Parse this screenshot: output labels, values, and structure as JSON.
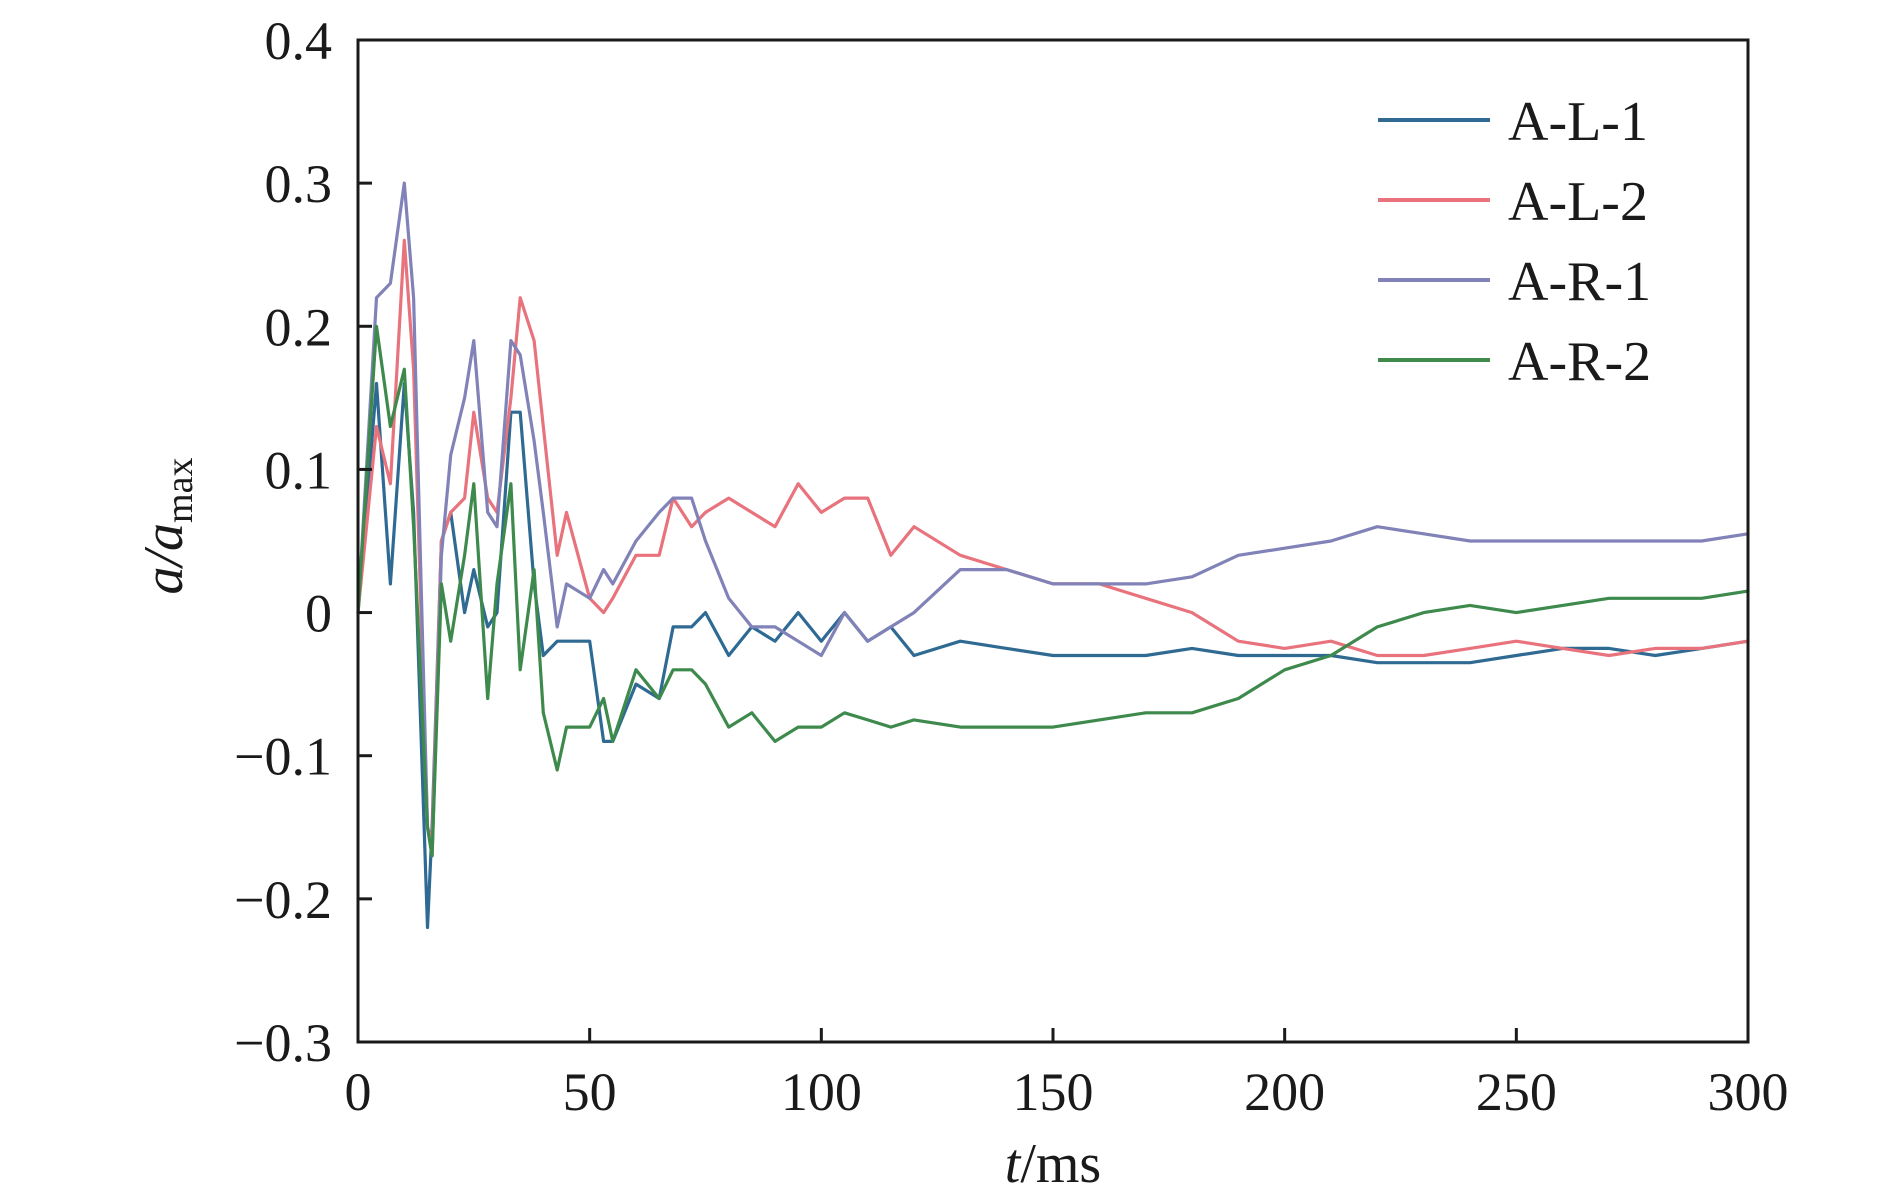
{
  "chart_data": {
    "type": "line",
    "title": "",
    "xlabel_var": "t",
    "xlabel_unit": "/ms",
    "ylabel_var": "a/a",
    "ylabel_sub": "max",
    "xlim": [
      0,
      300
    ],
    "ylim": [
      -0.3,
      0.4
    ],
    "x_ticks": [
      0,
      50,
      100,
      150,
      200,
      250,
      300
    ],
    "x_tick_labels": [
      "0",
      "50",
      "100",
      "150",
      "200",
      "250",
      "300"
    ],
    "y_ticks": [
      -0.3,
      -0.2,
      -0.1,
      0,
      0.1,
      0.2,
      0.3,
      0.4
    ],
    "y_tick_labels": [
      "−0.3",
      "−0.2",
      "−0.1",
      "0",
      "0.1",
      "0.2",
      "0.3",
      "0.4"
    ],
    "grid": false,
    "legend_position": "top-right",
    "x": [
      0,
      4,
      7,
      10,
      12,
      15,
      16,
      18,
      20,
      23,
      25,
      28,
      30,
      33,
      35,
      38,
      40,
      43,
      45,
      50,
      53,
      55,
      60,
      65,
      68,
      72,
      75,
      80,
      85,
      90,
      95,
      100,
      105,
      110,
      115,
      120,
      130,
      140,
      150,
      160,
      170,
      180,
      190,
      200,
      210,
      220,
      230,
      240,
      250,
      260,
      270,
      280,
      290,
      300
    ],
    "series": [
      {
        "name": "A-L-1",
        "color": "#2f6a93",
        "values": [
          0.0,
          0.16,
          0.02,
          0.16,
          0.07,
          -0.22,
          -0.15,
          0.05,
          0.07,
          0.0,
          0.03,
          -0.01,
          0.0,
          0.14,
          0.14,
          0.02,
          -0.03,
          -0.02,
          -0.02,
          -0.02,
          -0.09,
          -0.09,
          -0.05,
          -0.06,
          -0.01,
          -0.01,
          0.0,
          -0.03,
          -0.01,
          -0.02,
          0.0,
          -0.02,
          0.0,
          -0.02,
          -0.01,
          -0.03,
          -0.02,
          -0.025,
          -0.03,
          -0.03,
          -0.03,
          -0.025,
          -0.03,
          -0.03,
          -0.03,
          -0.035,
          -0.035,
          -0.035,
          -0.03,
          -0.025,
          -0.025,
          -0.03,
          -0.025,
          -0.02
        ]
      },
      {
        "name": "A-L-2",
        "color": "#e8737d",
        "values": [
          0.0,
          0.13,
          0.09,
          0.26,
          0.17,
          -0.15,
          -0.16,
          0.05,
          0.07,
          0.08,
          0.14,
          0.08,
          0.07,
          0.15,
          0.22,
          0.19,
          0.13,
          0.04,
          0.07,
          0.01,
          0.0,
          0.01,
          0.04,
          0.04,
          0.08,
          0.06,
          0.07,
          0.08,
          0.07,
          0.06,
          0.09,
          0.07,
          0.08,
          0.08,
          0.04,
          0.06,
          0.04,
          0.03,
          0.02,
          0.02,
          0.01,
          0.0,
          -0.02,
          -0.025,
          -0.02,
          -0.03,
          -0.03,
          -0.025,
          -0.02,
          -0.025,
          -0.03,
          -0.025,
          -0.025,
          -0.02
        ]
      },
      {
        "name": "A-R-1",
        "color": "#8082b8",
        "values": [
          0.0,
          0.22,
          0.23,
          0.3,
          0.22,
          -0.15,
          -0.17,
          0.04,
          0.11,
          0.15,
          0.19,
          0.07,
          0.06,
          0.19,
          0.18,
          0.12,
          0.07,
          -0.01,
          0.02,
          0.01,
          0.03,
          0.02,
          0.05,
          0.07,
          0.08,
          0.08,
          0.05,
          0.01,
          -0.01,
          -0.01,
          -0.02,
          -0.03,
          0.0,
          -0.02,
          -0.01,
          0.0,
          0.03,
          0.03,
          0.02,
          0.02,
          0.02,
          0.025,
          0.04,
          0.045,
          0.05,
          0.06,
          0.055,
          0.05,
          0.05,
          0.05,
          0.05,
          0.05,
          0.05,
          0.055
        ]
      },
      {
        "name": "A-R-2",
        "color": "#3d8a4c",
        "values": [
          0.0,
          0.2,
          0.13,
          0.17,
          0.06,
          -0.15,
          -0.17,
          0.02,
          -0.02,
          0.04,
          0.09,
          -0.06,
          0.02,
          0.09,
          -0.04,
          0.03,
          -0.07,
          -0.11,
          -0.08,
          -0.08,
          -0.06,
          -0.09,
          -0.04,
          -0.06,
          -0.04,
          -0.04,
          -0.05,
          -0.08,
          -0.07,
          -0.09,
          -0.08,
          -0.08,
          -0.07,
          -0.075,
          -0.08,
          -0.075,
          -0.08,
          -0.08,
          -0.08,
          -0.075,
          -0.07,
          -0.07,
          -0.06,
          -0.04,
          -0.03,
          -0.01,
          0.0,
          0.005,
          0.0,
          0.005,
          0.01,
          0.01,
          0.01,
          0.015
        ]
      }
    ]
  }
}
